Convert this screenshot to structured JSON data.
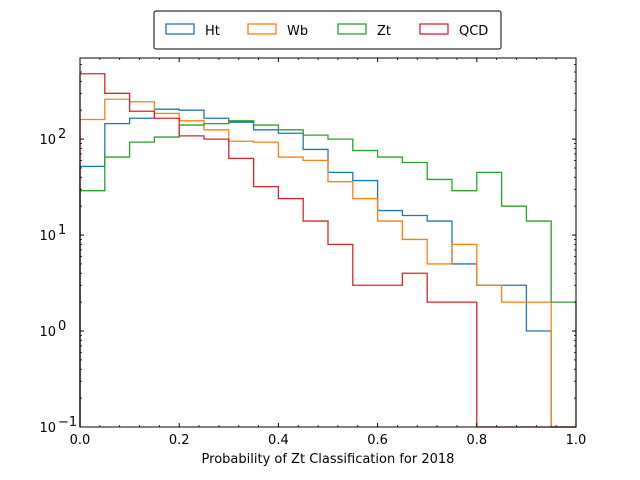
{
  "chart_data": {
    "type": "histogram-step",
    "xlabel": "Probability of Zt Classification for 2018",
    "ylabel": "",
    "xlim": [
      0.0,
      1.0
    ],
    "ylim": [
      0.1,
      700
    ],
    "yscale": "log",
    "grid": false,
    "legend_position": "top-center",
    "x_tick_labels": [
      "0.0",
      "0.2",
      "0.4",
      "0.6",
      "0.8",
      "1.0"
    ],
    "y_tick_labels": [
      {
        "base": "10",
        "exp": "−1"
      },
      {
        "base": "10",
        "exp": "0"
      },
      {
        "base": "10",
        "exp": "1"
      },
      {
        "base": "10",
        "exp": "2"
      }
    ],
    "bin_edges": [
      0.0,
      0.05,
      0.1,
      0.15,
      0.2,
      0.25,
      0.3,
      0.35,
      0.4,
      0.45,
      0.5,
      0.55,
      0.6,
      0.65,
      0.7,
      0.75,
      0.8,
      0.85,
      0.9,
      0.95,
      1.0
    ],
    "series": [
      {
        "name": "Ht",
        "color": "#1f77b4",
        "values": [
          52,
          145,
          165,
          205,
          200,
          165,
          150,
          125,
          115,
          78,
          45,
          37,
          18,
          16,
          14,
          5,
          3,
          3,
          1,
          0
        ]
      },
      {
        "name": "Wb",
        "color": "#ff7f0e",
        "values": [
          160,
          260,
          245,
          185,
          155,
          125,
          95,
          93,
          65,
          60,
          36,
          24,
          14,
          9,
          5,
          8,
          3,
          2,
          2,
          0
        ]
      },
      {
        "name": "Zt",
        "color": "#2ca02c",
        "values": [
          29,
          65,
          93,
          105,
          140,
          145,
          155,
          140,
          125,
          110,
          100,
          76,
          65,
          57,
          38,
          29,
          45,
          20,
          14,
          2
        ]
      },
      {
        "name": "QCD",
        "color": "#d62728",
        "values": [
          480,
          300,
          195,
          165,
          108,
          100,
          63,
          32,
          24,
          14,
          8,
          3,
          3,
          4,
          2,
          2,
          0,
          0,
          0,
          0
        ]
      }
    ]
  }
}
